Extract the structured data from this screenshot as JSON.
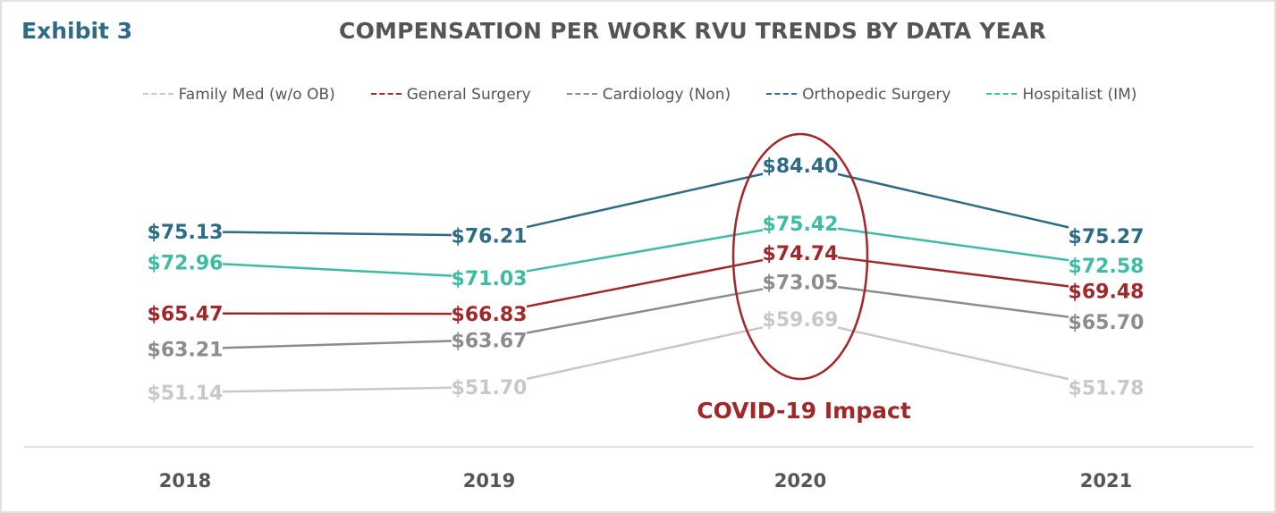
{
  "exhibit_label": "Exhibit 3",
  "chart_data": {
    "type": "line",
    "title": "COMPENSATION PER WORK RVU TRENDS BY DATA YEAR",
    "categories": [
      "2018",
      "2019",
      "2020",
      "2021"
    ],
    "value_format": "$",
    "legend_position": "top",
    "grid": false,
    "series": [
      {
        "name": "Family Med (w/o OB)",
        "color": "#c8c8c8",
        "values": [
          51.14,
          51.7,
          59.69,
          51.78
        ]
      },
      {
        "name": "General Surgery",
        "color": "#a0282a",
        "values": [
          65.47,
          66.83,
          74.74,
          69.48
        ]
      },
      {
        "name": "Cardiology (Non)",
        "color": "#8c8c8c",
        "values": [
          63.21,
          63.67,
          73.05,
          65.7
        ]
      },
      {
        "name": "Orthopedic Surgery",
        "color": "#2e6b84",
        "values": [
          75.13,
          76.21,
          84.4,
          75.27
        ]
      },
      {
        "name": "Hospitalist (IM)",
        "color": "#3dbba3",
        "values": [
          72.96,
          71.03,
          75.42,
          72.58
        ]
      }
    ],
    "annotation": {
      "text": "COVID-19 Impact",
      "category": "2020",
      "color": "#a0282a"
    }
  }
}
